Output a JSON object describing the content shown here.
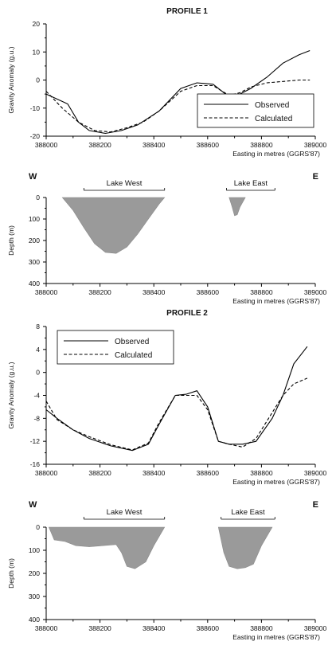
{
  "chart_data": [
    {
      "type": "line",
      "title": "PROFILE 1",
      "xlabel": "Easting in metres (GGRS'87)",
      "ylabel": "Gravity Anomaly (g.u.)",
      "xlim": [
        388000,
        389000
      ],
      "ylim": [
        -20,
        20
      ],
      "xticks": [
        388000,
        388200,
        388400,
        388600,
        388800,
        389000
      ],
      "yticks": [
        -20,
        -10,
        0,
        10,
        20
      ],
      "legend_position": "bottom-right",
      "series": [
        {
          "name": "Observed",
          "style": "solid",
          "x": [
            388000,
            388080,
            388120,
            388160,
            388220,
            388280,
            388340,
            388420,
            388500,
            388560,
            388620,
            388680,
            388720,
            388760,
            388820,
            388880,
            388940,
            388980
          ],
          "y": [
            -5,
            -8.5,
            -15,
            -18,
            -19,
            -18,
            -16,
            -11,
            -3,
            -1,
            -1.5,
            -6,
            -5,
            -3,
            1,
            6,
            9,
            10.5
          ]
        },
        {
          "name": "Calculated",
          "style": "dashed",
          "x": [
            388000,
            388060,
            388120,
            388180,
            388240,
            388300,
            388360,
            388420,
            388500,
            388560,
            388620,
            388680,
            388720,
            388760,
            388820,
            388880,
            388940,
            388980
          ],
          "y": [
            -4,
            -10,
            -15,
            -18,
            -18.5,
            -17,
            -15,
            -11,
            -4,
            -2,
            -2,
            -5.5,
            -4.5,
            -2.5,
            -1,
            -0.5,
            0,
            0
          ]
        }
      ]
    },
    {
      "type": "area",
      "xlabel": "Easting in metres (GGRS'87)",
      "ylabel": "Depth (m)",
      "xlim": [
        388000,
        389000
      ],
      "ylim": [
        0,
        400
      ],
      "y_inverted": true,
      "xticks": [
        388000,
        388200,
        388400,
        388600,
        388800,
        389000
      ],
      "yticks": [
        0,
        100,
        200,
        300,
        400
      ],
      "side_labels": {
        "west": "W",
        "east": "E"
      },
      "lakes": [
        {
          "label": "Lake West",
          "extent": [
            388140,
            388440
          ]
        },
        {
          "label": "Lake East",
          "extent": [
            388670,
            388850
          ]
        }
      ],
      "bodies": [
        {
          "x": [
            388060,
            388100,
            388140,
            388180,
            388220,
            388260,
            388300,
            388340,
            388380,
            388420,
            388440
          ],
          "depth": [
            0,
            60,
            140,
            215,
            255,
            260,
            230,
            170,
            100,
            30,
            0
          ]
        },
        {
          "x": [
            388680,
            388690,
            388700,
            388710,
            388720,
            388740
          ],
          "depth": [
            0,
            40,
            85,
            80,
            45,
            0
          ]
        }
      ]
    },
    {
      "type": "line",
      "title": "PROFILE 2",
      "xlabel": "Easting in metres (GGRS'87)",
      "ylabel": "Gravity Anomaly (g.u.)",
      "xlim": [
        388000,
        389000
      ],
      "ylim": [
        -16,
        8
      ],
      "xticks": [
        388000,
        388200,
        388400,
        388600,
        388800,
        389000
      ],
      "yticks": [
        -16,
        -12,
        -8,
        -4,
        0,
        4,
        8
      ],
      "legend_position": "top-left",
      "series": [
        {
          "name": "Observed",
          "style": "solid",
          "x": [
            388000,
            388040,
            388100,
            388160,
            388240,
            388320,
            388380,
            388420,
            388480,
            388520,
            388560,
            388600,
            388640,
            388680,
            388730,
            388780,
            388840,
            388880,
            388920,
            388970
          ],
          "y": [
            -6.5,
            -8,
            -10,
            -11.5,
            -12.8,
            -13.6,
            -12.5,
            -9,
            -4,
            -3.8,
            -3.2,
            -6,
            -12,
            -12.5,
            -12.5,
            -12,
            -8,
            -4,
            1.5,
            4.5
          ]
        },
        {
          "name": "Calculated",
          "style": "dashed",
          "x": [
            388000,
            388040,
            388100,
            388160,
            388240,
            388320,
            388380,
            388420,
            388480,
            388520,
            388560,
            388600,
            388640,
            388680,
            388730,
            388780,
            388840,
            388880,
            388920,
            388970
          ],
          "y": [
            -5,
            -8.2,
            -10,
            -11.2,
            -12.6,
            -13.5,
            -12.3,
            -8.7,
            -4,
            -4,
            -4,
            -6.5,
            -12,
            -12.5,
            -13,
            -11.5,
            -7,
            -4,
            -2,
            -1
          ]
        }
      ]
    },
    {
      "type": "area",
      "xlabel": "Easting in metres (GGRS'87)",
      "ylabel": "Depth (m)",
      "xlim": [
        388000,
        389000
      ],
      "ylim": [
        0,
        400
      ],
      "y_inverted": true,
      "xticks": [
        388000,
        388200,
        388400,
        388600,
        388800,
        389000
      ],
      "yticks": [
        0,
        100,
        200,
        300,
        400
      ],
      "side_labels": {
        "west": "W",
        "east": "E"
      },
      "lakes": [
        {
          "label": "Lake West",
          "extent": [
            388140,
            388440
          ]
        },
        {
          "label": "Lake East",
          "extent": [
            388650,
            388850
          ]
        }
      ],
      "bodies": [
        {
          "x": [
            388010,
            388030,
            388070,
            388110,
            388160,
            388210,
            388260,
            388280,
            388300,
            388330,
            388370,
            388400,
            388440
          ],
          "depth": [
            0,
            55,
            62,
            80,
            85,
            80,
            75,
            110,
            170,
            180,
            150,
            80,
            0
          ]
        },
        {
          "x": [
            388640,
            388660,
            388680,
            388710,
            388740,
            388770,
            388800,
            388840
          ],
          "depth": [
            0,
            110,
            170,
            180,
            175,
            160,
            80,
            0
          ]
        }
      ]
    }
  ]
}
